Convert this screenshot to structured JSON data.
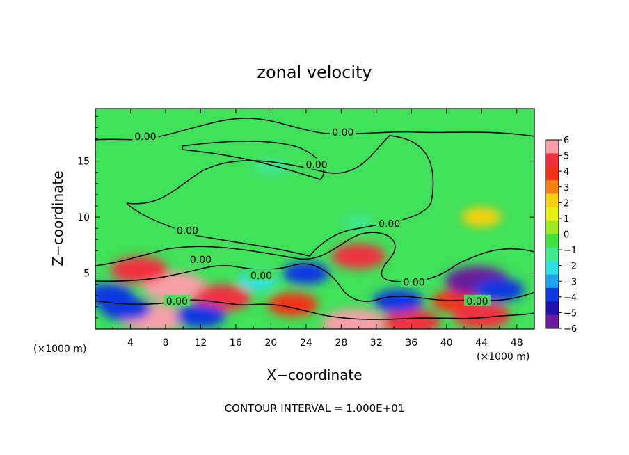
{
  "chart_data": {
    "type": "heatmap",
    "title": "zonal velocity",
    "xlabel": "X−coordinate",
    "ylabel": "Z−coordinate",
    "x_unit_label": "(×1000 m)",
    "xlim": [
      0,
      50
    ],
    "ylim": [
      0,
      19.7
    ],
    "x_ticks": [
      4,
      8,
      12,
      16,
      20,
      24,
      28,
      32,
      36,
      40,
      44,
      48
    ],
    "y_ticks": [
      5,
      10,
      15
    ],
    "footer": "CONTOUR INTERVAL = 1.000E+01",
    "contour_level_label": "0.00",
    "colorbar": {
      "min": -6,
      "max": 6,
      "ticks": [
        "6",
        "5",
        "4",
        "3",
        "2",
        "1",
        "0",
        "−1",
        "−2",
        "−3",
        "−4",
        "−5",
        "−6"
      ],
      "colors": [
        "#f7a0a8",
        "#f03040",
        "#f53018",
        "#f88010",
        "#f8d010",
        "#e8f010",
        "#a0e820",
        "#40e040",
        "#40e890",
        "#30e0e0",
        "#20a0f0",
        "#1038e0",
        "#2010b0",
        "#6a1a9a"
      ]
    },
    "features": [
      {
        "x": 30,
        "y": 6.5,
        "value": 4.5
      },
      {
        "x": 9,
        "y": 3.8,
        "value": 6
      },
      {
        "x": 5,
        "y": 5.3,
        "value": 5
      },
      {
        "x": 14.5,
        "y": 2.8,
        "value": 5
      },
      {
        "x": 22.5,
        "y": 2.2,
        "value": 4
      },
      {
        "x": 41,
        "y": 2.5,
        "value": 3.5
      },
      {
        "x": 6.5,
        "y": 1,
        "value": 6
      },
      {
        "x": 29.5,
        "y": 0.5,
        "value": 6
      },
      {
        "x": 36,
        "y": 0.6,
        "value": 5
      },
      {
        "x": 44,
        "y": 1.2,
        "value": 5
      },
      {
        "x": 43.5,
        "y": 4.3,
        "value": -6
      },
      {
        "x": 46,
        "y": 3.5,
        "value": -4
      },
      {
        "x": 1.5,
        "y": 3,
        "value": -4
      },
      {
        "x": 3.5,
        "y": 1.8,
        "value": -4
      },
      {
        "x": 12,
        "y": 1.2,
        "value": -4
      },
      {
        "x": 24,
        "y": 5,
        "value": -3.5
      },
      {
        "x": 34.5,
        "y": 2.5,
        "value": -4
      },
      {
        "x": 18.5,
        "y": 4.3,
        "value": -2.5
      },
      {
        "x": 44,
        "y": 10,
        "value": 2.5
      },
      {
        "x": 20,
        "y": 14.5,
        "value": -1.5
      },
      {
        "x": 30,
        "y": 9.5,
        "value": -1
      }
    ],
    "contour_labels": [
      {
        "x": 5.7,
        "y": 17.2
      },
      {
        "x": 28.2,
        "y": 17.6
      },
      {
        "x": 25.2,
        "y": 14.7
      },
      {
        "x": 10.5,
        "y": 8.8
      },
      {
        "x": 33.5,
        "y": 9.4
      },
      {
        "x": 12,
        "y": 6.2
      },
      {
        "x": 18.9,
        "y": 4.8
      },
      {
        "x": 9.3,
        "y": 2.5
      },
      {
        "x": 36.3,
        "y": 4.2
      },
      {
        "x": 43.5,
        "y": 2.5
      }
    ]
  }
}
